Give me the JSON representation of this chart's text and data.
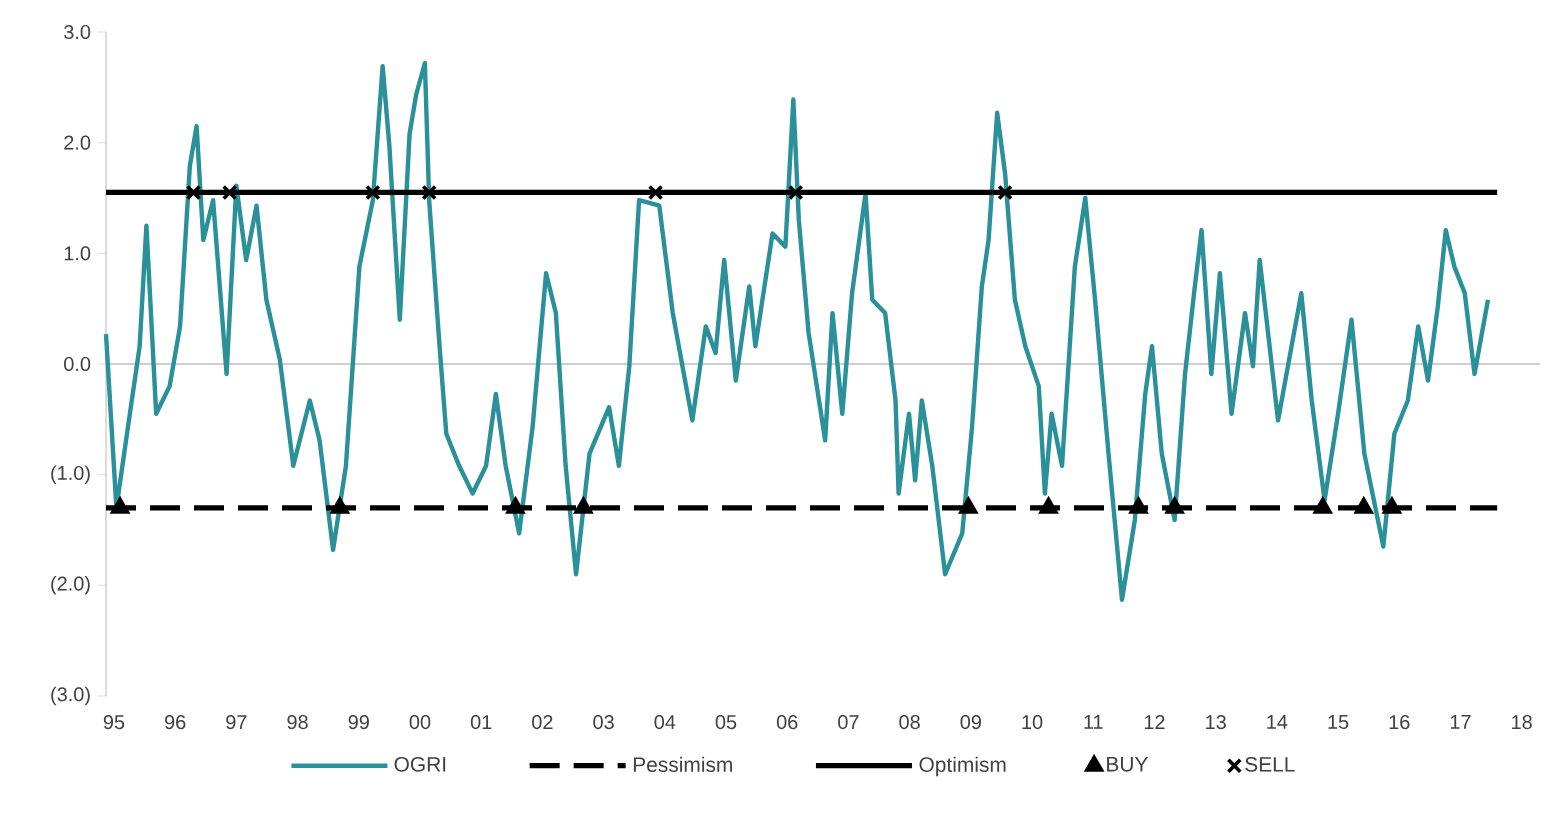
{
  "chart_data": {
    "type": "line",
    "xlim": [
      1994.87,
      2018.3
    ],
    "ylim": [
      -3,
      3
    ],
    "xticks": [
      {
        "value": 1995,
        "label": "95"
      },
      {
        "value": 1996,
        "label": "96"
      },
      {
        "value": 1997,
        "label": "97"
      },
      {
        "value": 1998,
        "label": "98"
      },
      {
        "value": 1999,
        "label": "99"
      },
      {
        "value": 2000,
        "label": "00"
      },
      {
        "value": 2001,
        "label": "01"
      },
      {
        "value": 2002,
        "label": "02"
      },
      {
        "value": 2003,
        "label": "03"
      },
      {
        "value": 2004,
        "label": "04"
      },
      {
        "value": 2005,
        "label": "05"
      },
      {
        "value": 2006,
        "label": "06"
      },
      {
        "value": 2007,
        "label": "07"
      },
      {
        "value": 2008,
        "label": "08"
      },
      {
        "value": 2009,
        "label": "09"
      },
      {
        "value": 2010,
        "label": "10"
      },
      {
        "value": 2011,
        "label": "11"
      },
      {
        "value": 2012,
        "label": "12"
      },
      {
        "value": 2013,
        "label": "13"
      },
      {
        "value": 2014,
        "label": "14"
      },
      {
        "value": 2015,
        "label": "15"
      },
      {
        "value": 2016,
        "label": "16"
      },
      {
        "value": 2017,
        "label": "17"
      },
      {
        "value": 2018,
        "label": "18"
      }
    ],
    "yticks": [
      {
        "value": -3,
        "label": "(3.0)"
      },
      {
        "value": -2,
        "label": "(2.0)"
      },
      {
        "value": -1,
        "label": "(1.0)"
      },
      {
        "value": 0,
        "label": "0.0"
      },
      {
        "value": 1,
        "label": "1.0"
      },
      {
        "value": 2,
        "label": "2.0"
      },
      {
        "value": 3,
        "label": "3.0"
      }
    ],
    "legend": "bottom",
    "ref_lines": [
      {
        "axis": "y",
        "value": 0,
        "color": "#bfbfbf"
      }
    ],
    "series": [
      {
        "name": "OGRI",
        "type": "line",
        "color": "#2a9099",
        "line_style": "solid",
        "marker": "none",
        "x": [
          1994.87,
          1995.04,
          1995.26,
          1995.42,
          1995.53,
          1995.69,
          1995.91,
          1996.08,
          1996.24,
          1996.35,
          1996.46,
          1996.62,
          1996.84,
          1997.0,
          1997.16,
          1997.33,
          1997.49,
          1997.71,
          1997.93,
          1998.2,
          1998.36,
          1998.58,
          1998.79,
          1999.01,
          1999.23,
          1999.39,
          1999.5,
          1999.67,
          1999.83,
          1999.94,
          2000.08,
          2000.15,
          2000.32,
          2000.43,
          2000.64,
          2000.86,
          2001.08,
          2001.24,
          2001.4,
          2001.62,
          2001.84,
          2002.06,
          2002.22,
          2002.38,
          2002.55,
          2002.77,
          2003.09,
          2003.25,
          2003.42,
          2003.58,
          2003.91,
          2004.13,
          2004.45,
          2004.67,
          2004.83,
          2004.97,
          2005.16,
          2005.38,
          2005.48,
          2005.76,
          2005.97,
          2006.1,
          2006.19,
          2006.35,
          2006.62,
          2006.74,
          2006.9,
          2007.06,
          2007.28,
          2007.39,
          2007.6,
          2007.77,
          2007.82,
          2007.99,
          2008.09,
          2008.2,
          2008.37,
          2008.58,
          2008.86,
          2009.02,
          2009.18,
          2009.29,
          2009.43,
          2009.56,
          2009.72,
          2009.89,
          2010.11,
          2010.21,
          2010.32,
          2010.49,
          2010.7,
          2010.87,
          2011.03,
          2011.25,
          2011.47,
          2011.68,
          2011.85,
          2011.96,
          2012.12,
          2012.33,
          2012.5,
          2012.66,
          2012.77,
          2012.93,
          2013.07,
          2013.26,
          2013.48,
          2013.61,
          2013.72,
          2014.02,
          2014.24,
          2014.4,
          2014.57,
          2014.78,
          2015.0,
          2015.22,
          2015.43,
          2015.74,
          2015.92,
          2016.14,
          2016.31,
          2016.47,
          2016.63,
          2016.76,
          2016.9,
          2017.07,
          2017.23,
          2017.45
        ],
        "values": [
          0.27,
          -1.3,
          -0.45,
          0.16,
          1.25,
          -0.45,
          -0.2,
          0.34,
          1.79,
          2.15,
          1.12,
          1.48,
          -0.09,
          1.61,
          0.94,
          1.43,
          0.58,
          0.04,
          -0.92,
          -0.33,
          -0.69,
          -1.68,
          -0.92,
          0.88,
          1.48,
          2.69,
          1.97,
          0.4,
          2.08,
          2.44,
          2.72,
          1.48,
          0.16,
          -0.63,
          -0.92,
          -1.17,
          -0.92,
          -0.27,
          -0.92,
          -1.53,
          -0.57,
          0.82,
          0.46,
          -0.92,
          -1.9,
          -0.81,
          -0.39,
          -0.92,
          -0.02,
          1.48,
          1.43,
          0.46,
          -0.51,
          0.34,
          0.1,
          0.94,
          -0.15,
          0.7,
          0.16,
          1.18,
          1.06,
          2.39,
          1.3,
          0.28,
          -0.69,
          0.46,
          -0.45,
          0.64,
          1.54,
          0.58,
          0.46,
          -0.33,
          -1.17,
          -0.45,
          -1.05,
          -0.33,
          -0.92,
          -1.9,
          -1.53,
          -0.57,
          0.7,
          1.12,
          2.27,
          1.72,
          0.58,
          0.16,
          -0.2,
          -1.17,
          -0.45,
          -0.92,
          0.88,
          1.5,
          0.58,
          -0.81,
          -2.13,
          -1.41,
          -0.27,
          0.16,
          -0.81,
          -1.41,
          -0.09,
          0.7,
          1.21,
          -0.09,
          0.82,
          -0.45,
          0.46,
          -0.02,
          0.94,
          -0.51,
          0.16,
          0.64,
          -0.33,
          -1.23,
          -0.45,
          0.4,
          -0.81,
          -1.65,
          -0.63,
          -0.33,
          0.34,
          -0.15,
          0.52,
          1.21,
          0.88,
          0.64,
          -0.09,
          0.58
        ]
      },
      {
        "name": "Pessimism",
        "type": "line",
        "color": "#000000",
        "line_style": "dashed",
        "marker": "none",
        "x": [
          1994.87,
          2017.6
        ],
        "values": [
          -1.3,
          -1.3
        ]
      },
      {
        "name": "Optimism",
        "type": "line",
        "color": "#000000",
        "line_style": "solid",
        "marker": "none",
        "x": [
          1994.87,
          2017.6
        ],
        "values": [
          1.55,
          1.55
        ]
      },
      {
        "name": "BUY",
        "type": "scatter",
        "color": "#000000",
        "marker": "triangle",
        "x": [
          1995.1,
          1998.69,
          2001.56,
          2002.67,
          2008.96,
          2010.27,
          2011.74,
          2012.33,
          2014.75,
          2015.42,
          2015.88
        ],
        "values": [
          -1.3,
          -1.3,
          -1.3,
          -1.3,
          -1.3,
          -1.3,
          -1.3,
          -1.3,
          -1.3,
          -1.3,
          -1.3
        ]
      },
      {
        "name": "SELL",
        "type": "scatter",
        "color": "#000000",
        "marker": "cross",
        "x": [
          1996.3,
          1996.89,
          1999.23,
          2000.15,
          2003.85,
          2006.14,
          2009.56
        ],
        "values": [
          1.55,
          1.55,
          1.55,
          1.55,
          1.55,
          1.55,
          1.55
        ]
      }
    ]
  }
}
